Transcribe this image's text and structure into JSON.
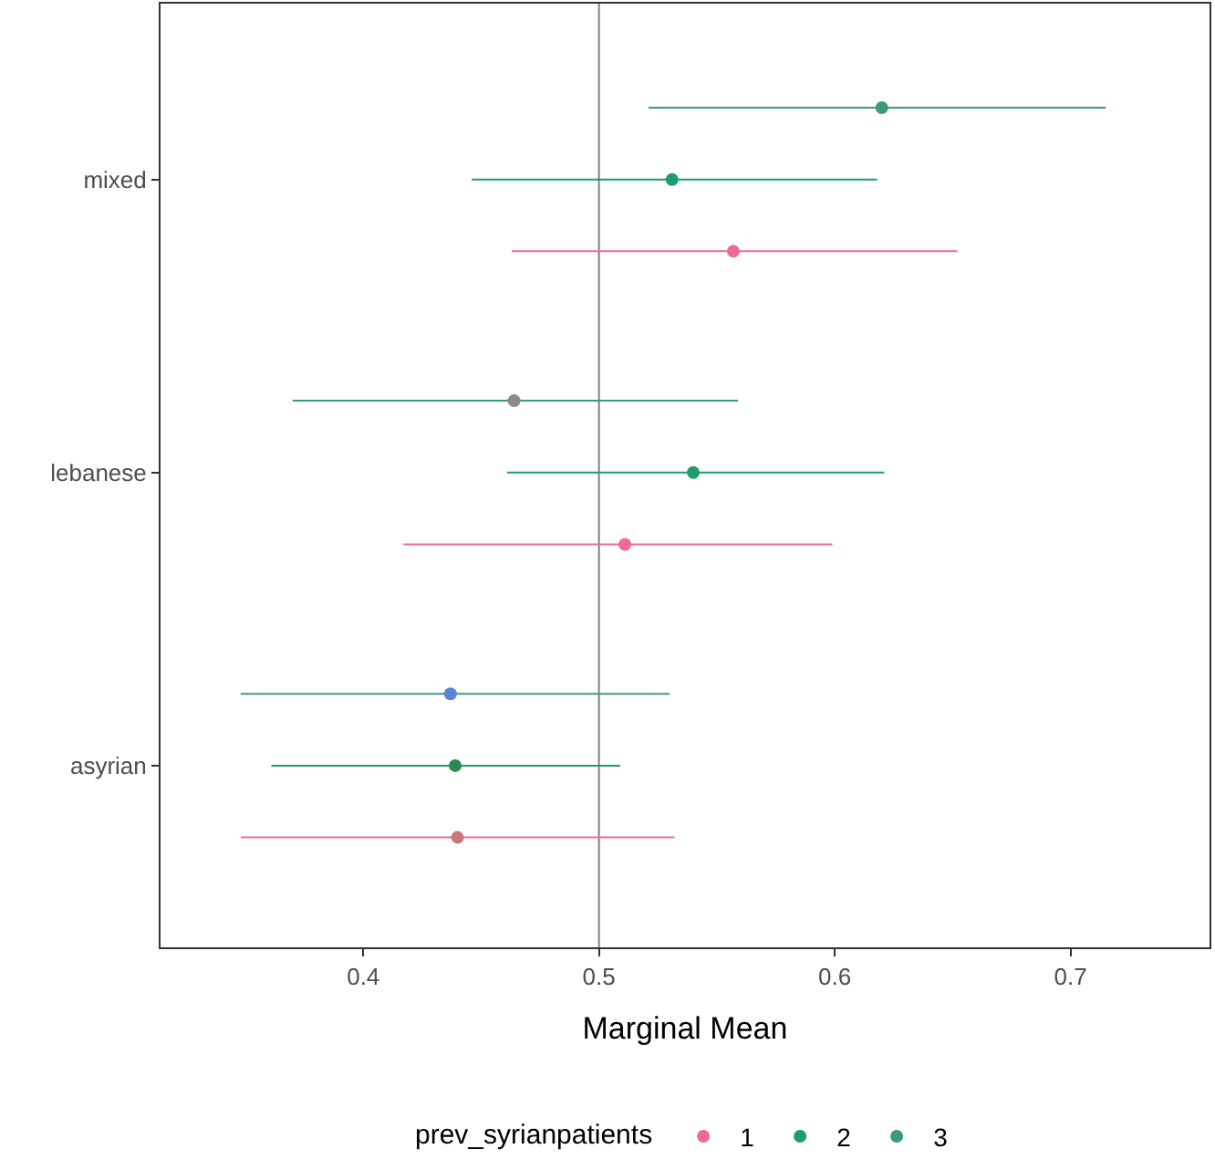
{
  "chart_data": {
    "type": "scatter",
    "orientation": "horizontal",
    "xlabel": "Marginal Mean",
    "legend_title": "prev_syrianpatients",
    "categories": [
      "mixed",
      "lebanese",
      "asyrian"
    ],
    "series": [
      {
        "name": "1",
        "color": "#ee6a94",
        "colors": [
          "#ee6a94",
          "#ee6a94",
          "#c87878"
        ],
        "values": [
          0.557,
          0.511,
          0.44
        ],
        "errors": [
          [
            0.463,
            0.652
          ],
          [
            0.417,
            0.599
          ],
          [
            0.348,
            0.532
          ]
        ]
      },
      {
        "name": "2",
        "color": "#1b9e6a",
        "colors": [
          "#1b9e6a",
          "#1b9e6a",
          "#2a8a50"
        ],
        "values": [
          0.531,
          0.54,
          0.439
        ],
        "errors": [
          [
            0.446,
            0.618
          ],
          [
            0.461,
            0.621
          ],
          [
            0.361,
            0.509
          ]
        ]
      },
      {
        "name": "3",
        "color": "#3a9a80",
        "colors": [
          "#3a9a80",
          "#8a8a8a",
          "#5b84d6"
        ],
        "values": [
          0.62,
          0.464,
          0.437
        ],
        "errors": [
          [
            0.521,
            0.715
          ],
          [
            0.37,
            0.559
          ],
          [
            0.348,
            0.53
          ]
        ]
      }
    ],
    "xlim": [
      0.314,
      0.759
    ],
    "xticks": [
      0.4,
      0.5,
      0.6,
      0.7
    ],
    "ref_lines": [
      {
        "axis": "x",
        "value": 0.5,
        "color": "#808080"
      }
    ],
    "marker": "circle",
    "grid": false,
    "legend": "bottom"
  }
}
